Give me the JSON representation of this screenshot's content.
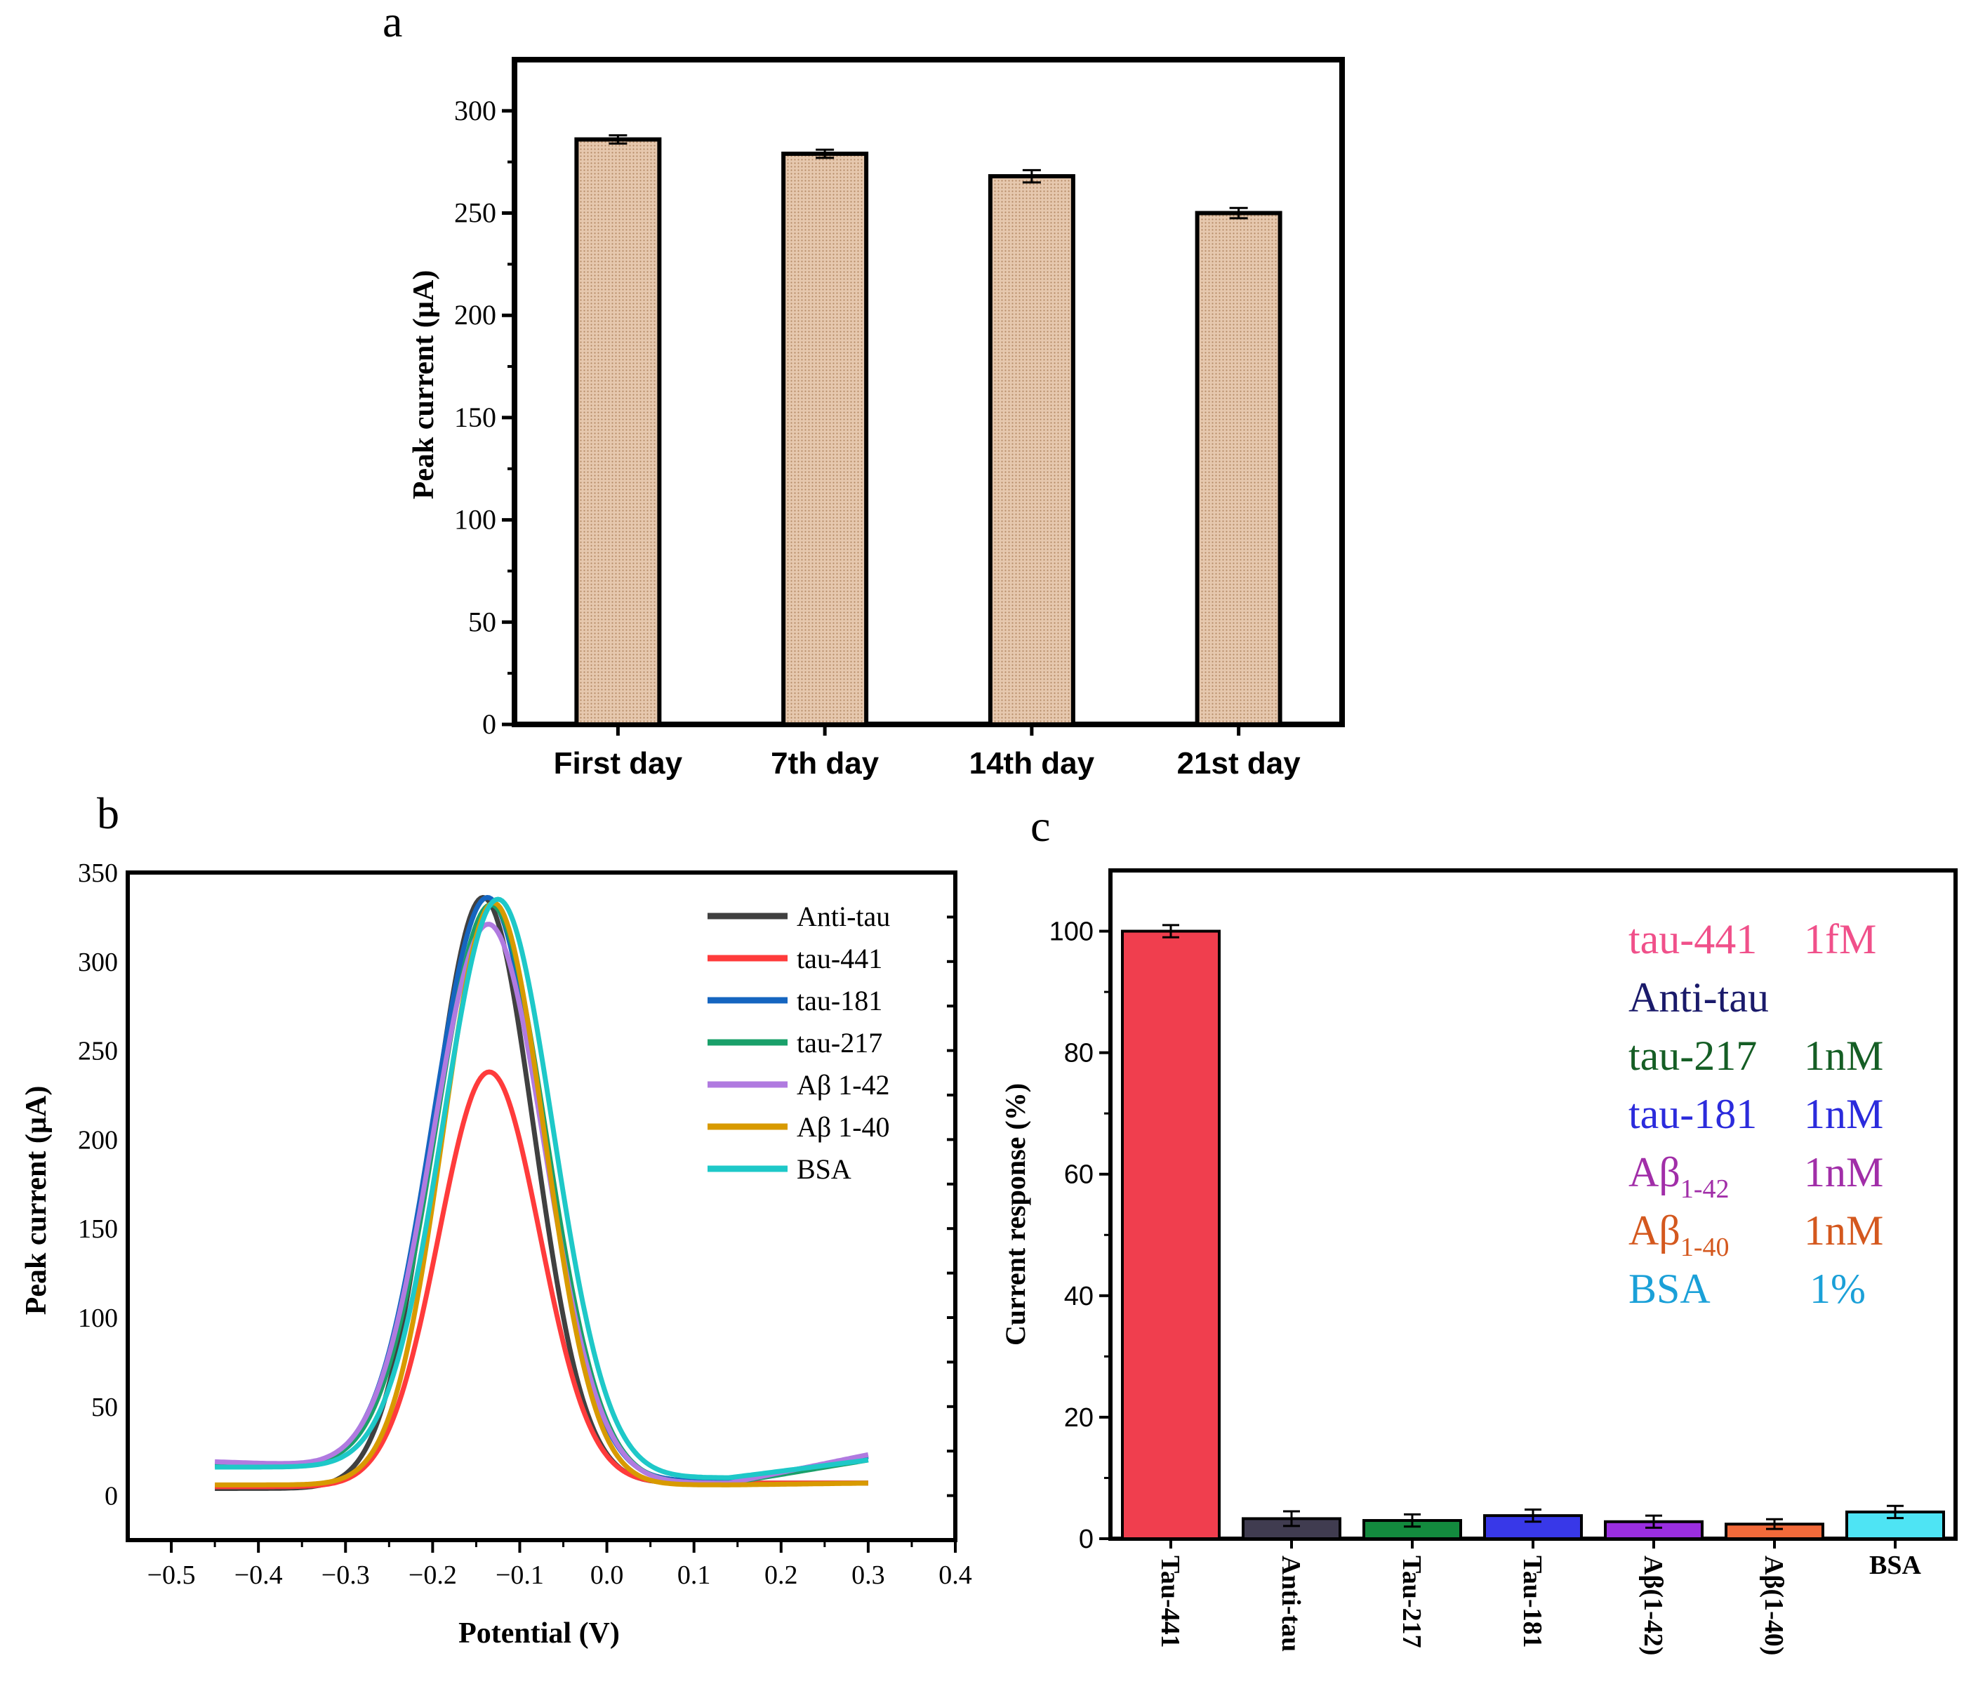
{
  "chart_data": [
    {
      "panel_label": "a",
      "type": "bar",
      "title": "",
      "xlabel": "",
      "ylabel": "Peak current (µA)",
      "ylim": [
        0,
        325
      ],
      "yticks": [
        "0",
        "50",
        "100",
        "150",
        "200",
        "250",
        "300"
      ],
      "categories": [
        "First day",
        "7th day",
        "14th day",
        "21st  day"
      ],
      "values": [
        286,
        279,
        268,
        250
      ],
      "errors": [
        2,
        2,
        3,
        2.5
      ],
      "bar_color": "#dcb89c",
      "grid": false
    },
    {
      "panel_label": "b",
      "type": "line",
      "title": "",
      "xlabel": "Potential (V)",
      "ylabel": "Peak current (µA)",
      "xlim": [
        -0.55,
        0.4
      ],
      "ylim": [
        -25,
        350
      ],
      "xticks": [
        "−0.5",
        "−0.4",
        "−0.3",
        "−0.2",
        "−0.1",
        "0.0",
        "0.1",
        "0.2",
        "0.3",
        "0.4"
      ],
      "yticks": [
        "0",
        "50",
        "100",
        "150",
        "200",
        "250",
        "300",
        "350"
      ],
      "legend_position": "top-right",
      "series": [
        {
          "name": "Anti-tau",
          "color": "#404040",
          "peak": 336,
          "center": -0.142,
          "width": 0.058,
          "base_left": 4,
          "base_right": 7,
          "edge_left": 4,
          "edge_right": 7
        },
        {
          "name": "tau-441",
          "color": "#ff3b3b",
          "peak": 238,
          "center": -0.135,
          "width": 0.058,
          "base_left": 5,
          "base_right": 7,
          "edge_left": 5,
          "edge_right": 7
        },
        {
          "name": "tau-181",
          "color": "#1565c0",
          "peak": 336,
          "center": -0.137,
          "width": 0.063,
          "base_left": 17,
          "base_right": 8,
          "edge_left": 17,
          "edge_right": 22
        },
        {
          "name": "tau-217",
          "color": "#1aa06a",
          "peak": 332,
          "center": -0.133,
          "width": 0.063,
          "base_left": 17,
          "base_right": 7,
          "edge_left": 17,
          "edge_right": 20
        },
        {
          "name": "Aβ 1-42",
          "color": "#b07ae0",
          "peak": 321,
          "center": -0.136,
          "width": 0.064,
          "base_left": 17,
          "base_right": 7,
          "edge_left": 19,
          "edge_right": 23
        },
        {
          "name": "Aβ 1-40",
          "color": "#d89a00",
          "peak": 333,
          "center": -0.13,
          "width": 0.058,
          "base_left": 6,
          "base_right": 6,
          "edge_left": 6,
          "edge_right": 7
        },
        {
          "name": "BSA",
          "color": "#1ec8c8",
          "peak": 335,
          "center": -0.125,
          "width": 0.063,
          "base_left": 16,
          "base_right": 10,
          "edge_left": 16,
          "edge_right": 20
        }
      ]
    },
    {
      "panel_label": "c",
      "type": "bar",
      "title": "",
      "xlabel": "",
      "ylabel": "Current response (%)",
      "ylim": [
        0,
        110
      ],
      "yticks": [
        "0",
        "20",
        "40",
        "60",
        "80",
        "100"
      ],
      "categories": [
        "Tau-441",
        "Anti-tau",
        "Tau-217",
        "Tau-181",
        "Aβ(1-42)",
        "Aβ(1-40)",
        "BSA"
      ],
      "values": [
        100,
        3.3,
        3.0,
        3.8,
        2.8,
        2.4,
        4.4
      ],
      "errors": [
        1.0,
        1.2,
        1.0,
        1.0,
        1.0,
        0.8,
        1.0
      ],
      "bar_colors": [
        "#f03e4e",
        "#403c50",
        "#138a3e",
        "#3838e8",
        "#9a2ee0",
        "#f26a3a",
        "#4ee4f4"
      ],
      "legend_position": "top-right",
      "legend": [
        {
          "label": "tau-441",
          "sub": "",
          "conc": "1fM",
          "color": "#f0508a"
        },
        {
          "label": "Anti-tau",
          "sub": "",
          "conc": "",
          "color": "#1a1a6a"
        },
        {
          "label": "tau-217",
          "sub": "",
          "conc": "1nM",
          "color": "#155e25"
        },
        {
          "label": "tau-181",
          "sub": "",
          "conc": "1nM",
          "color": "#2b2bdc"
        },
        {
          "label": "Aβ",
          "sub": "1-42",
          "conc": "1nM",
          "color": "#a12ea8"
        },
        {
          "label": "Aβ",
          "sub": "1-40",
          "conc": "1nM",
          "color": "#d4581e"
        },
        {
          "label": "BSA",
          "sub": "",
          "conc": "1%",
          "color": "#1aa0d8"
        }
      ],
      "grid": false
    }
  ]
}
